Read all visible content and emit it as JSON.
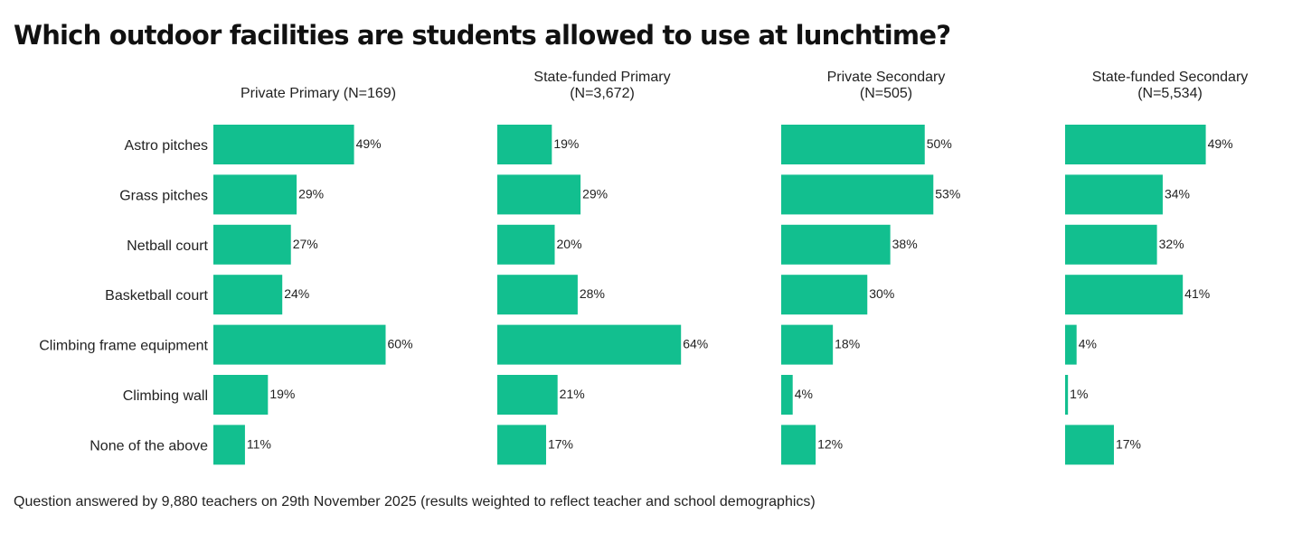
{
  "title": "Which outdoor facilities are students allowed to use at lunchtime?",
  "footnote": "Question answered by 9,880 teachers on 29th November 2025 (results weighted to reflect teacher and school demographics)",
  "colors": {
    "bar": "#12BF8F",
    "text": "#222222"
  },
  "chart_data": {
    "type": "bar",
    "orientation": "horizontal",
    "unit": "%",
    "categories": [
      "Astro pitches",
      "Grass pitches",
      "Netball court",
      "Basketball court",
      "Climbing frame equipment",
      "Climbing wall",
      "None of the above"
    ],
    "xlim": [
      0,
      64
    ],
    "series": [
      {
        "name": "Private Primary",
        "title_lines": [
          "Private Primary (N=169)"
        ],
        "values": [
          49,
          29,
          27,
          24,
          60,
          19,
          11
        ]
      },
      {
        "name": "State-funded Primary",
        "title_lines": [
          "State-funded Primary",
          "(N=3,672)"
        ],
        "values": [
          19,
          29,
          20,
          28,
          64,
          21,
          17
        ]
      },
      {
        "name": "Private Secondary",
        "title_lines": [
          "Private Secondary",
          "(N=505)"
        ],
        "values": [
          50,
          53,
          38,
          30,
          18,
          4,
          12
        ]
      },
      {
        "name": "State-funded Secondary",
        "title_lines": [
          "State-funded Secondary",
          "(N=5,534)"
        ],
        "values": [
          49,
          34,
          32,
          41,
          4,
          1,
          17
        ]
      }
    ]
  }
}
